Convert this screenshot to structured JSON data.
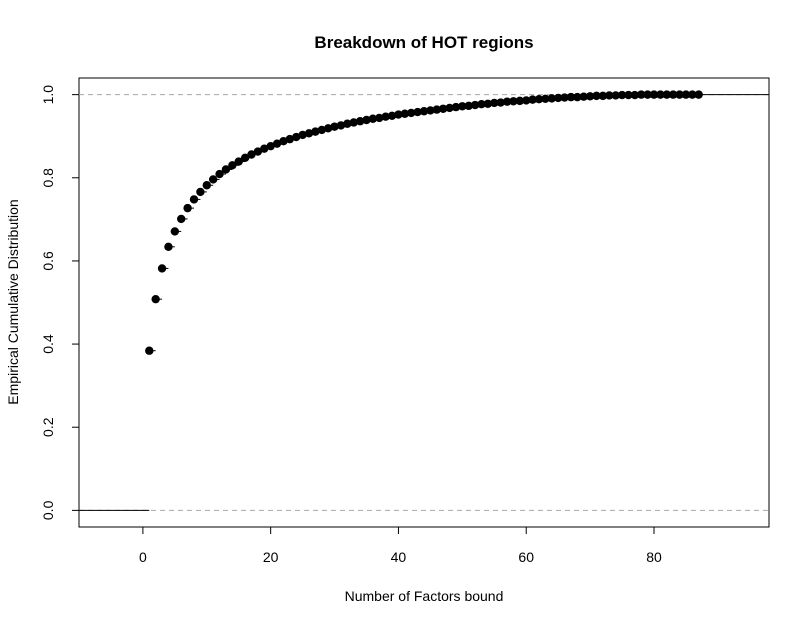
{
  "chart_data": {
    "type": "scatter",
    "title": "Breakdown of HOT regions",
    "xlabel": "Number of Factors bound",
    "ylabel": "Empirical Cumulative Distribution",
    "xlim": [
      -10,
      98
    ],
    "ylim": [
      -0.04,
      1.04
    ],
    "xticks": [
      0,
      20,
      40,
      60,
      80
    ],
    "xtick_labels": [
      "0",
      "20",
      "40",
      "60",
      "80"
    ],
    "yticks": [
      0.0,
      0.2,
      0.4,
      0.6,
      0.8,
      1.0
    ],
    "ytick_labels": [
      "0.0",
      "0.2",
      "0.4",
      "0.6",
      "0.8",
      "1.0"
    ],
    "reference_lines": [
      0.0,
      1.0
    ],
    "series": [
      {
        "x": [
          1,
          2,
          3,
          4,
          5,
          6,
          7,
          8,
          9,
          10,
          11,
          12,
          13,
          14,
          15,
          16,
          17,
          18,
          19,
          20,
          21,
          22,
          23,
          24,
          25,
          26,
          27,
          28,
          29,
          30,
          31,
          32,
          33,
          34,
          35,
          36,
          37,
          38,
          39,
          40,
          41,
          42,
          43,
          44,
          45,
          46,
          47,
          48,
          49,
          50,
          51,
          52,
          53,
          54,
          55,
          56,
          57,
          58,
          59,
          60,
          61,
          62,
          63,
          64,
          65,
          66,
          67,
          68,
          69,
          70,
          71,
          72,
          73,
          74,
          75,
          76,
          77,
          78,
          79,
          80,
          81,
          82,
          83,
          84,
          85,
          86,
          87
        ],
        "y": [
          0.384,
          0.508,
          0.582,
          0.634,
          0.671,
          0.701,
          0.727,
          0.748,
          0.766,
          0.782,
          0.796,
          0.809,
          0.82,
          0.83,
          0.839,
          0.848,
          0.856,
          0.863,
          0.87,
          0.876,
          0.882,
          0.888,
          0.893,
          0.898,
          0.903,
          0.907,
          0.911,
          0.915,
          0.919,
          0.923,
          0.926,
          0.93,
          0.933,
          0.936,
          0.939,
          0.942,
          0.944,
          0.947,
          0.949,
          0.952,
          0.954,
          0.956,
          0.958,
          0.96,
          0.962,
          0.964,
          0.966,
          0.968,
          0.97,
          0.972,
          0.973,
          0.975,
          0.977,
          0.978,
          0.98,
          0.981,
          0.983,
          0.984,
          0.985,
          0.986,
          0.988,
          0.989,
          0.99,
          0.991,
          0.992,
          0.993,
          0.994,
          0.994,
          0.995,
          0.996,
          0.997,
          0.997,
          0.998,
          0.998,
          0.999,
          0.999,
          0.999,
          1.0,
          1.0,
          1.0,
          1.0,
          1.0,
          1.0,
          1.0,
          1.0,
          1.0,
          1.0
        ]
      }
    ],
    "grid": false,
    "legend": "none"
  }
}
